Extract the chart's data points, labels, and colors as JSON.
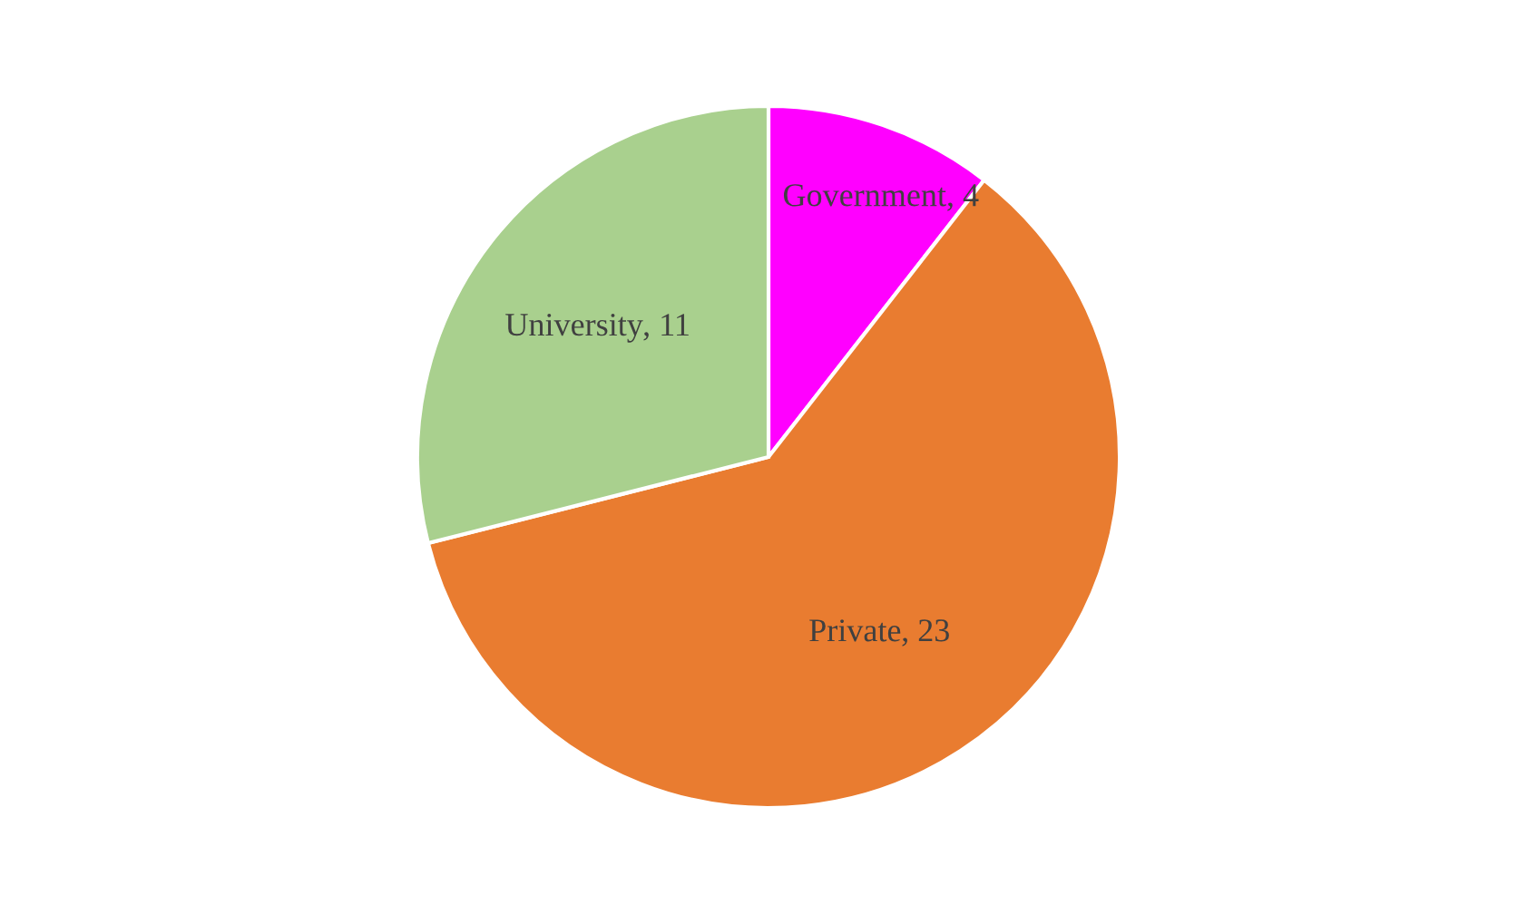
{
  "chart_data": {
    "type": "pie",
    "categories": [
      "Government",
      "Private",
      "University"
    ],
    "values": [
      4,
      23,
      11
    ],
    "value_labels": [
      ", 4",
      ", 23",
      ", 11"
    ],
    "colors": [
      "#ff00ff",
      "#e97c30",
      "#a9d08e"
    ]
  }
}
